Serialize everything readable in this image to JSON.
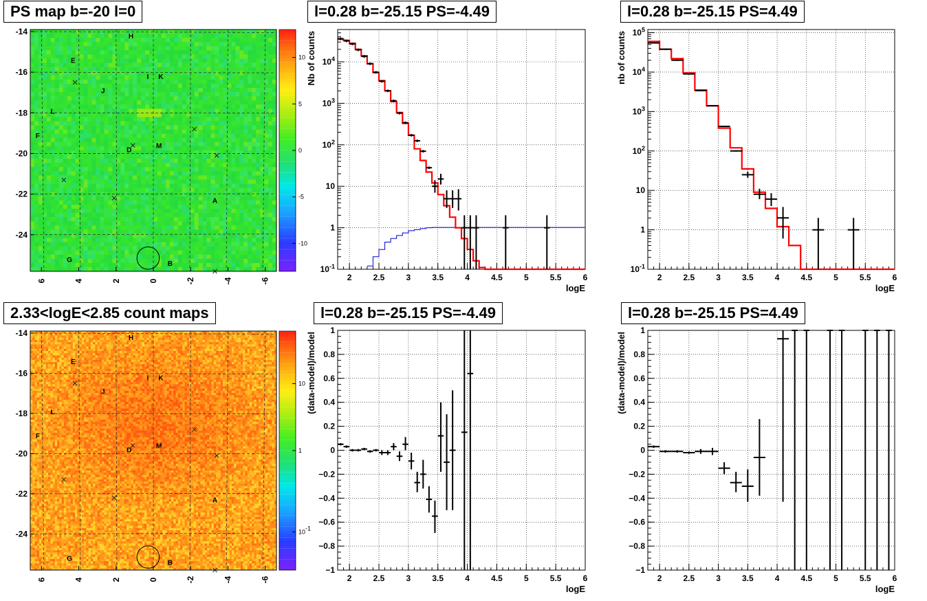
{
  "titles": {
    "map_ps": "PS map b=-20 l=0",
    "spec_neg": "l=0.28 b=-25.15 PS=-4.49",
    "spec_pos": "l=0.28 b=-25.15 PS=4.49",
    "map_counts": "2.33<logE<2.85 count maps",
    "res_neg": "l=0.28 b=-25.15 PS=-4.49",
    "res_pos": "l=0.28 b=-25.15 PS=4.49"
  },
  "colors": {
    "data": "#000000",
    "model": "#ff0000",
    "aux": "#0000cc"
  },
  "chart_data": [
    {
      "type": "heatmap",
      "title": "PS map b=-20 l=0",
      "x_ticks": [
        "6",
        "4",
        "2",
        "0",
        "-2",
        "-4",
        "-6"
      ],
      "y_ticks": [
        "-14",
        "-16",
        "-18",
        "-20",
        "-22",
        "-24"
      ],
      "xlim": [
        6.6,
        -6.6
      ],
      "ylim": [
        -25.8,
        -13.9
      ],
      "colorbar_ticks": [
        "10",
        "5",
        "0",
        "-5",
        "-10"
      ],
      "colorbar_range": [
        -13,
        13
      ],
      "sources": [
        {
          "label": "H",
          "l": 1.2,
          "b": -14.2
        },
        {
          "label": "E",
          "l": 4.3,
          "b": -15.4
        },
        {
          "label": "I",
          "l": 0.3,
          "b": -16.2
        },
        {
          "label": "K",
          "l": -0.4,
          "b": -16.2
        },
        {
          "label": "J",
          "l": 2.7,
          "b": -16.9
        },
        {
          "label": "L",
          "l": 5.4,
          "b": -17.9
        },
        {
          "label": "F",
          "l": 6.2,
          "b": -19.1
        },
        {
          "label": "D",
          "l": 1.3,
          "b": -19.8
        },
        {
          "label": "M",
          "l": -0.3,
          "b": -19.6
        },
        {
          "label": "A",
          "l": -3.3,
          "b": -22.3
        },
        {
          "label": "G",
          "l": 4.5,
          "b": -25.2
        },
        {
          "label": "B",
          "l": -0.9,
          "b": -25.4
        }
      ],
      "markers": [
        {
          "l": 4.2,
          "b": -16.5
        },
        {
          "l": 1.1,
          "b": -19.6
        },
        {
          "l": -2.2,
          "b": -18.8
        },
        {
          "l": -3.4,
          "b": -20.1
        },
        {
          "l": 4.8,
          "b": -21.3
        },
        {
          "l": 2.1,
          "b": -22.2
        },
        {
          "l": -3.3,
          "b": -25.8
        }
      ],
      "circle": {
        "l": 0.28,
        "b": -25.15,
        "r": 0.6
      }
    },
    {
      "type": "line",
      "title": "l=0.28 b=-25.15 PS=-4.49",
      "xlabel": "logE",
      "ylabel": "Nb of counts",
      "xlim": [
        1.8,
        6.0
      ],
      "ylim": [
        0.1,
        60000
      ],
      "yscale": "log",
      "x_ticks": [
        "2",
        "2.5",
        "3",
        "3.5",
        "4",
        "4.5",
        "5",
        "5.5",
        "6"
      ],
      "y_ticks": [
        "10^{-1}",
        "1",
        "10",
        "10^{2}",
        "10^{3}",
        "10^{4}"
      ],
      "series": [
        {
          "kind": "model_step",
          "edges": [
            1.8,
            1.9,
            2.0,
            2.1,
            2.2,
            2.3,
            2.4,
            2.5,
            2.6,
            2.7,
            2.8,
            2.9,
            3.0,
            3.1,
            3.2,
            3.3,
            3.4,
            3.5,
            3.6,
            3.7,
            3.8,
            3.9,
            4.0,
            4.1,
            4.2,
            4.3,
            6.0
          ],
          "values": [
            35000,
            33000,
            28000,
            20000,
            14000,
            9000,
            5500,
            3500,
            2000,
            1100,
            600,
            330,
            170,
            80,
            42,
            22,
            12,
            6.3,
            3.4,
            1.8,
            1.0,
            0.55,
            0.3,
            0.16,
            0.11,
            0.1
          ]
        },
        {
          "kind": "data_points",
          "points": [
            {
              "x": 1.85,
              "y": 36000
            },
            {
              "x": 1.95,
              "y": 32000
            },
            {
              "x": 2.05,
              "y": 27000
            },
            {
              "x": 2.15,
              "y": 19500
            },
            {
              "x": 2.25,
              "y": 13500
            },
            {
              "x": 2.35,
              "y": 9000
            },
            {
              "x": 2.45,
              "y": 5600
            },
            {
              "x": 2.55,
              "y": 3400
            },
            {
              "x": 2.65,
              "y": 2000
            },
            {
              "x": 2.75,
              "y": 1150
            },
            {
              "x": 2.85,
              "y": 580
            },
            {
              "x": 2.95,
              "y": 340
            },
            {
              "x": 3.05,
              "y": 170
            },
            {
              "x": 3.15,
              "y": 125
            },
            {
              "x": 3.25,
              "y": 70
            },
            {
              "x": 3.35,
              "y": 28
            },
            {
              "x": 3.45,
              "y": 10,
              "lo": 7,
              "hi": 14
            },
            {
              "x": 3.55,
              "y": 15,
              "lo": 11,
              "hi": 20
            },
            {
              "x": 3.65,
              "y": 5,
              "lo": 3,
              "hi": 8
            },
            {
              "x": 3.75,
              "y": 5,
              "lo": 3,
              "hi": 8
            },
            {
              "x": 3.85,
              "y": 5,
              "lo": 2.6,
              "hi": 8.5
            },
            {
              "x": 3.95,
              "y": 1,
              "lo": 0.1,
              "hi": 2
            },
            {
              "x": 4.05,
              "y": 1,
              "lo": 0.1,
              "hi": 2
            },
            {
              "x": 4.15,
              "y": 1,
              "lo": 0.1,
              "hi": 2
            },
            {
              "x": 4.65,
              "y": 1,
              "lo": 0.1,
              "hi": 2
            },
            {
              "x": 5.35,
              "y": 1,
              "lo": 0.1,
              "hi": 2
            }
          ]
        },
        {
          "kind": "aux_step",
          "edges": [
            2.3,
            2.4,
            2.5,
            2.6,
            2.7,
            2.8,
            2.9,
            3.0,
            3.1,
            3.2,
            3.3,
            3.4,
            6.0
          ],
          "values": [
            0.12,
            0.2,
            0.3,
            0.45,
            0.55,
            0.65,
            0.75,
            0.85,
            0.9,
            0.95,
            1.0,
            1.02
          ]
        }
      ]
    },
    {
      "type": "line",
      "title": "l=0.28 b=-25.15 PS=4.49",
      "xlabel": "logE",
      "ylabel": "nb of counts",
      "xlim": [
        1.8,
        6.0
      ],
      "ylim": [
        0.1,
        120000
      ],
      "yscale": "log",
      "x_ticks": [
        "2",
        "2.5",
        "3",
        "3.5",
        "4",
        "4.5",
        "5",
        "5.5",
        "6"
      ],
      "y_ticks": [
        "10^{-1}",
        "1",
        "10",
        "10^{2}",
        "10^{3}",
        "10^{4}",
        "10^{5}"
      ],
      "series": [
        {
          "kind": "model_step",
          "edges": [
            1.8,
            2.0,
            2.2,
            2.4,
            2.6,
            2.8,
            3.0,
            3.2,
            3.4,
            3.6,
            3.8,
            4.0,
            4.2,
            4.4,
            6.0
          ],
          "values": [
            60000,
            38000,
            22000,
            9500,
            3500,
            1400,
            380,
            120,
            35,
            9,
            3.5,
            1.2,
            0.4,
            0.1
          ]
        },
        {
          "kind": "data_points",
          "points": [
            {
              "x": 1.9,
              "y": 55000,
              "xerr": 0.1
            },
            {
              "x": 2.1,
              "y": 38000,
              "xerr": 0.1
            },
            {
              "x": 2.3,
              "y": 20000,
              "xerr": 0.1
            },
            {
              "x": 2.5,
              "y": 9000,
              "xerr": 0.1
            },
            {
              "x": 2.7,
              "y": 3400,
              "xerr": 0.1
            },
            {
              "x": 2.9,
              "y": 1400,
              "xerr": 0.1
            },
            {
              "x": 3.1,
              "y": 420,
              "xerr": 0.1
            },
            {
              "x": 3.3,
              "y": 100,
              "xerr": 0.1
            },
            {
              "x": 3.5,
              "y": 25,
              "xerr": 0.1,
              "lo": 21,
              "hi": 30
            },
            {
              "x": 3.7,
              "y": 8,
              "xerr": 0.1,
              "lo": 6,
              "hi": 11
            },
            {
              "x": 3.9,
              "y": 6,
              "xerr": 0.1,
              "lo": 4,
              "hi": 8.5
            },
            {
              "x": 4.1,
              "y": 2,
              "xerr": 0.1,
              "lo": 0.6,
              "hi": 3.8
            },
            {
              "x": 4.7,
              "y": 1,
              "xerr": 0.1,
              "lo": 0.1,
              "hi": 2
            },
            {
              "x": 5.3,
              "y": 1,
              "xerr": 0.1,
              "lo": 0.1,
              "hi": 2
            }
          ]
        }
      ]
    },
    {
      "type": "heatmap",
      "title": "2.33<logE<2.85 count maps",
      "x_ticks": [
        "6",
        "4",
        "2",
        "0",
        "-2",
        "-4",
        "-6"
      ],
      "y_ticks": [
        "-14",
        "-16",
        "-18",
        "-20",
        "-22",
        "-24"
      ],
      "xlim": [
        6.6,
        -6.6
      ],
      "ylim": [
        -25.8,
        -13.9
      ],
      "colorbar_ticks": [
        "10",
        "1",
        "10^{-1}"
      ],
      "colorbar_scale": "log",
      "sources": [
        {
          "label": "H",
          "l": 1.2,
          "b": -14.2
        },
        {
          "label": "E",
          "l": 4.3,
          "b": -15.4
        },
        {
          "label": "I",
          "l": 0.3,
          "b": -16.2
        },
        {
          "label": "K",
          "l": -0.4,
          "b": -16.2
        },
        {
          "label": "J",
          "l": 2.7,
          "b": -16.9
        },
        {
          "label": "L",
          "l": 5.4,
          "b": -17.9
        },
        {
          "label": "F",
          "l": 6.2,
          "b": -19.1
        },
        {
          "label": "D",
          "l": 1.3,
          "b": -19.8
        },
        {
          "label": "M",
          "l": -0.3,
          "b": -19.6
        },
        {
          "label": "A",
          "l": -3.3,
          "b": -22.3
        },
        {
          "label": "G",
          "l": 4.5,
          "b": -25.2
        },
        {
          "label": "B",
          "l": -0.9,
          "b": -25.4
        }
      ],
      "markers": [
        {
          "l": 4.2,
          "b": -16.5
        },
        {
          "l": 1.1,
          "b": -19.6
        },
        {
          "l": -2.2,
          "b": -18.8
        },
        {
          "l": -3.4,
          "b": -20.1
        },
        {
          "l": 4.8,
          "b": -21.3
        },
        {
          "l": 2.1,
          "b": -22.2
        },
        {
          "l": -3.3,
          "b": -25.8
        }
      ],
      "circle": {
        "l": 0.28,
        "b": -25.15,
        "r": 0.6
      }
    },
    {
      "type": "scatter",
      "title": "l=0.28 b=-25.15 PS=-4.49",
      "xlabel": "logE",
      "ylabel": "(data-model)/model",
      "xlim": [
        1.8,
        6.0
      ],
      "ylim": [
        -1,
        1
      ],
      "x_ticks": [
        "2",
        "2.5",
        "3",
        "3.5",
        "4",
        "4.5",
        "5",
        "5.5",
        "6"
      ],
      "y_ticks": [
        "−1",
        "−0.8",
        "−0.6",
        "−0.4",
        "−0.2",
        "0",
        "0.2",
        "0.4",
        "0.6",
        "0.8",
        "1"
      ],
      "points": [
        {
          "x": 1.85,
          "y": 0.05,
          "lo": 0.04,
          "hi": 0.06
        },
        {
          "x": 1.95,
          "y": 0.03,
          "lo": 0.02,
          "hi": 0.04
        },
        {
          "x": 2.05,
          "y": 0.0,
          "lo": -0.01,
          "hi": 0.01
        },
        {
          "x": 2.15,
          "y": 0.0,
          "lo": -0.01,
          "hi": 0.01
        },
        {
          "x": 2.25,
          "y": 0.01,
          "lo": 0.0,
          "hi": 0.02
        },
        {
          "x": 2.35,
          "y": -0.01,
          "lo": -0.02,
          "hi": 0.0
        },
        {
          "x": 2.45,
          "y": 0.0,
          "lo": -0.01,
          "hi": 0.01
        },
        {
          "x": 2.55,
          "y": -0.02,
          "lo": -0.04,
          "hi": 0.0
        },
        {
          "x": 2.65,
          "y": -0.02,
          "lo": -0.04,
          "hi": 0.0
        },
        {
          "x": 2.75,
          "y": 0.03,
          "lo": 0.0,
          "hi": 0.06
        },
        {
          "x": 2.85,
          "y": -0.05,
          "lo": -0.09,
          "hi": -0.01
        },
        {
          "x": 2.95,
          "y": 0.05,
          "lo": 0.0,
          "hi": 0.11
        },
        {
          "x": 3.05,
          "y": -0.09,
          "lo": -0.16,
          "hi": -0.02
        },
        {
          "x": 3.15,
          "y": -0.27,
          "lo": -0.35,
          "hi": -0.18
        },
        {
          "x": 3.25,
          "y": -0.2,
          "lo": -0.32,
          "hi": -0.08
        },
        {
          "x": 3.35,
          "y": -0.41,
          "lo": -0.52,
          "hi": -0.3
        },
        {
          "x": 3.45,
          "y": -0.55,
          "lo": -0.69,
          "hi": -0.42
        },
        {
          "x": 3.55,
          "y": 0.12,
          "lo": -0.18,
          "hi": 0.4
        },
        {
          "x": 3.65,
          "y": -0.1,
          "lo": -0.5,
          "hi": 0.3
        },
        {
          "x": 3.75,
          "y": 0.0,
          "lo": -0.5,
          "hi": 0.5
        },
        {
          "x": 3.95,
          "y": 0.15,
          "lo": -1.0,
          "hi": 1.0
        },
        {
          "x": 4.05,
          "y": 0.64,
          "lo": -1.0,
          "hi": 1.0
        }
      ]
    },
    {
      "type": "scatter",
      "title": "l=0.28 b=-25.15 PS=4.49",
      "xlabel": "logE",
      "ylabel": "(data-model)/model",
      "xlim": [
        1.8,
        6.0
      ],
      "ylim": [
        -1,
        1
      ],
      "x_ticks": [
        "2",
        "2.5",
        "3",
        "3.5",
        "4",
        "4.5",
        "5",
        "5.5",
        "6"
      ],
      "y_ticks": [
        "−1",
        "−0.8",
        "−0.6",
        "−0.4",
        "−0.2",
        "0",
        "0.2",
        "0.4",
        "0.6",
        "0.8",
        "1"
      ],
      "points": [
        {
          "x": 1.9,
          "y": 0.03,
          "xerr": 0.1,
          "lo": 0.02,
          "hi": 0.04
        },
        {
          "x": 2.1,
          "y": -0.01,
          "xerr": 0.1,
          "lo": -0.02,
          "hi": 0.0
        },
        {
          "x": 2.3,
          "y": -0.01,
          "xerr": 0.1,
          "lo": -0.02,
          "hi": 0.0
        },
        {
          "x": 2.5,
          "y": -0.02,
          "xerr": 0.1,
          "lo": -0.03,
          "hi": -0.01
        },
        {
          "x": 2.7,
          "y": -0.01,
          "xerr": 0.1,
          "lo": -0.03,
          "hi": 0.01
        },
        {
          "x": 2.9,
          "y": -0.01,
          "xerr": 0.1,
          "lo": -0.04,
          "hi": 0.02
        },
        {
          "x": 3.1,
          "y": -0.15,
          "xerr": 0.1,
          "lo": -0.2,
          "hi": -0.1
        },
        {
          "x": 3.3,
          "y": -0.27,
          "xerr": 0.1,
          "lo": -0.35,
          "hi": -0.18
        },
        {
          "x": 3.5,
          "y": -0.3,
          "xerr": 0.1,
          "lo": -0.43,
          "hi": -0.16
        },
        {
          "x": 3.7,
          "y": -0.06,
          "xerr": 0.1,
          "lo": -0.38,
          "hi": 0.26
        },
        {
          "x": 4.1,
          "y": 0.93,
          "xerr": 0.1,
          "lo": -0.43,
          "hi": 1.0
        },
        {
          "x": 4.3,
          "y": 1.0,
          "lo": -1.0,
          "hi": 1.0
        },
        {
          "x": 4.5,
          "y": 1.0,
          "lo": -1.0,
          "hi": 1.0
        },
        {
          "x": 4.9,
          "y": 1.0,
          "lo": -1.0,
          "hi": 1.0
        },
        {
          "x": 5.1,
          "y": 1.0,
          "lo": -1.0,
          "hi": 1.0
        },
        {
          "x": 5.5,
          "y": 1.0,
          "lo": -1.0,
          "hi": 1.0
        },
        {
          "x": 5.7,
          "y": 1.0,
          "lo": -1.0,
          "hi": 1.0
        },
        {
          "x": 5.9,
          "y": 1.0,
          "lo": -1.0,
          "hi": 1.0
        }
      ]
    }
  ]
}
